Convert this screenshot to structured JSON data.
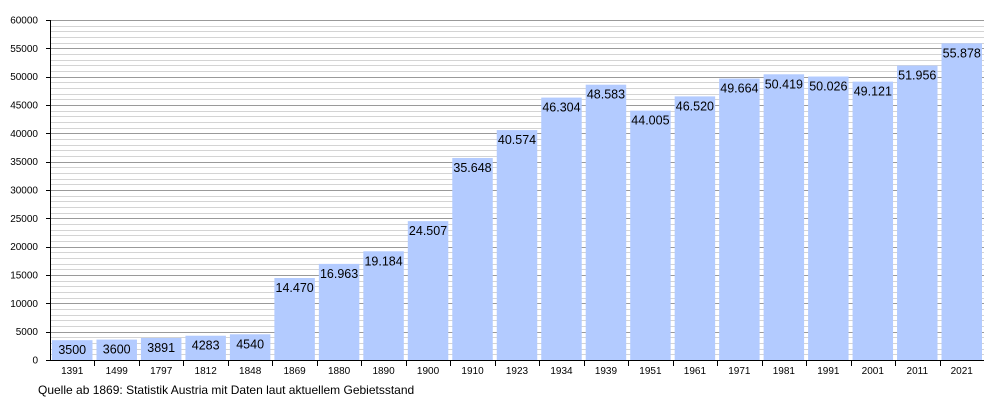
{
  "chart_data": {
    "type": "bar",
    "title": "",
    "xlabel": "",
    "ylabel": "",
    "categories": [
      "1391",
      "1499",
      "1797",
      "1812",
      "1848",
      "1869",
      "1880",
      "1890",
      "1900",
      "1910",
      "1923",
      "1934",
      "1939",
      "1951",
      "1961",
      "1971",
      "1981",
      "1991",
      "2001",
      "2011",
      "2021"
    ],
    "values": [
      3500,
      3600,
      3891,
      4283,
      4540,
      14470,
      16963,
      19184,
      24507,
      35648,
      40574,
      46304,
      48583,
      44005,
      46520,
      49664,
      50419,
      50026,
      49121,
      51956,
      55878
    ],
    "value_labels": [
      "3500",
      "3600",
      "3891",
      "4283",
      "4540",
      "14.470",
      "16.963",
      "19.184",
      "24.507",
      "35.648",
      "40.574",
      "46.304",
      "48.583",
      "44.005",
      "46.520",
      "49.664",
      "50.419",
      "50.026",
      "49.121",
      "51.956",
      "55.878"
    ],
    "ylim": [
      0,
      60000
    ],
    "y_ticks": [
      0,
      5000,
      10000,
      15000,
      20000,
      25000,
      30000,
      35000,
      40000,
      45000,
      50000,
      55000,
      60000
    ],
    "minor_grid_step": 1000,
    "grid": true,
    "bar_color": "#b3cbff",
    "source_note": "Quelle ab 1869: Statistik Austria mit Daten laut aktuellem Gebietsstand"
  }
}
